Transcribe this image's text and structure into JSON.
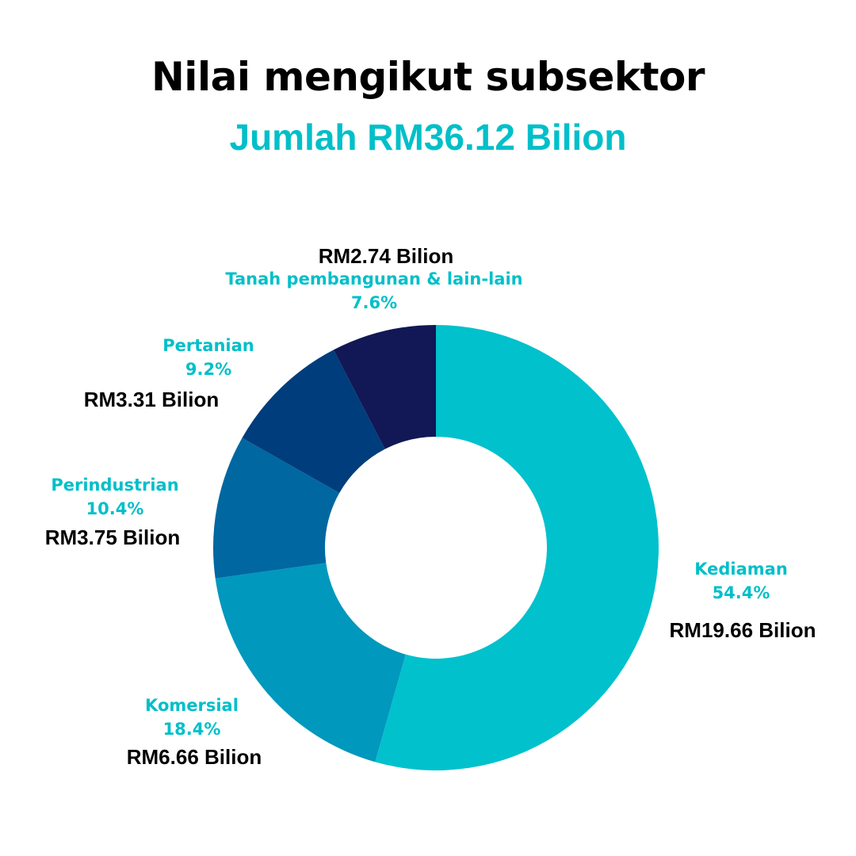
{
  "header": {
    "title": "Nilai mengikut subsektor",
    "subtitle": "Jumlah RM36.12 Bilion"
  },
  "colors": {
    "accent": "#00bfc9",
    "background": "#ffffff",
    "value_text": "#000000"
  },
  "chart_data": {
    "type": "pie",
    "donut": true,
    "title": "Nilai mengikut subsektor",
    "subtitle": "Jumlah RM36.12 Bilion",
    "start_angle_deg": 0,
    "direction": "clockwise",
    "slices": [
      {
        "name": "Kediaman",
        "percent": 54.4,
        "percent_label": "54.4%",
        "value": 19.66,
        "value_label": "RM19.66 Bilion",
        "color": "#00c1cc"
      },
      {
        "name": "Komersial",
        "percent": 18.4,
        "percent_label": "18.4%",
        "value": 6.66,
        "value_label": "RM6.66 Bilion",
        "color": "#0098bd"
      },
      {
        "name": "Perindustrian",
        "percent": 10.4,
        "percent_label": "10.4%",
        "value": 3.75,
        "value_label": "RM3.75 Bilion",
        "color": "#0067a1"
      },
      {
        "name": "Pertanian",
        "percent": 9.2,
        "percent_label": "9.2%",
        "value": 3.31,
        "value_label": "RM3.31 Bilion",
        "color": "#003d7c"
      },
      {
        "name": "Tanah pembangunan & lain-lain",
        "percent": 7.6,
        "percent_label": "7.6%",
        "value": 2.74,
        "value_label": "RM2.74 Bilion",
        "color": "#111855"
      }
    ]
  }
}
